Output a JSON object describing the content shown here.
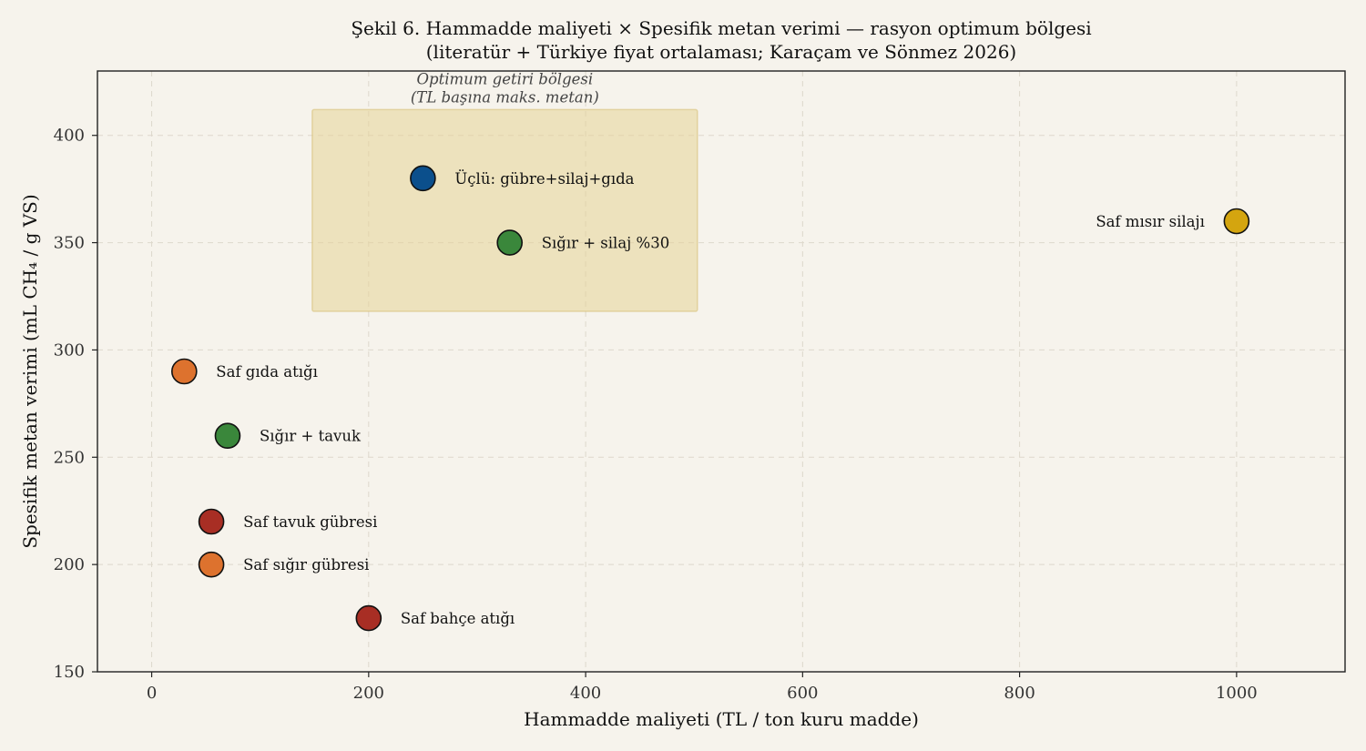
{
  "chart_data": {
    "type": "scatter",
    "title_line1": "Şekil 6. Hammadde maliyeti × Spesifik metan verimi — rasyon optimum bölgesi",
    "title_line2": "(literatür + Türkiye fiyat ortalaması; Karaçam ve Sönmez 2026)",
    "xlabel": "Hammadde maliyeti (TL / ton kuru madde)",
    "ylabel": "Spesifik metan verimi (mL CH₄ / g VS)",
    "xlim": [
      -50,
      1100
    ],
    "ylim": [
      150,
      430
    ],
    "xticks": [
      0,
      200,
      400,
      600,
      800,
      1000
    ],
    "yticks": [
      150,
      200,
      250,
      300,
      350,
      400
    ],
    "grid": true,
    "region": {
      "label_line1": "Optimum getiri bölgesi",
      "label_line2": "(TL başına maks. metan)",
      "x": [
        148,
        503
      ],
      "y": [
        318,
        412
      ],
      "color": "#e6d397"
    },
    "points": [
      {
        "label": "Üçlü: gübre+silaj+gıda",
        "x": 250,
        "y": 380,
        "color": "#0b4f8c",
        "label_side": "right"
      },
      {
        "label": "Sığır + silaj %30",
        "x": 330,
        "y": 350,
        "color": "#3a873b",
        "label_side": "right"
      },
      {
        "label": "Saf mısır silajı",
        "x": 1000,
        "y": 360,
        "color": "#d4a50f",
        "label_side": "left"
      },
      {
        "label": "Saf gıda atığı",
        "x": 30,
        "y": 290,
        "color": "#dd722e",
        "label_side": "right"
      },
      {
        "label": "Sığır + tavuk",
        "x": 70,
        "y": 260,
        "color": "#3a873b",
        "label_side": "right"
      },
      {
        "label": "Saf tavuk gübresi",
        "x": 55,
        "y": 220,
        "color": "#a82e24",
        "label_side": "right"
      },
      {
        "label": "Saf sığır gübresi",
        "x": 55,
        "y": 200,
        "color": "#dd722e",
        "label_side": "right"
      },
      {
        "label": "Saf bahçe atığı",
        "x": 200,
        "y": 175,
        "color": "#a82e24",
        "label_side": "right"
      }
    ]
  }
}
